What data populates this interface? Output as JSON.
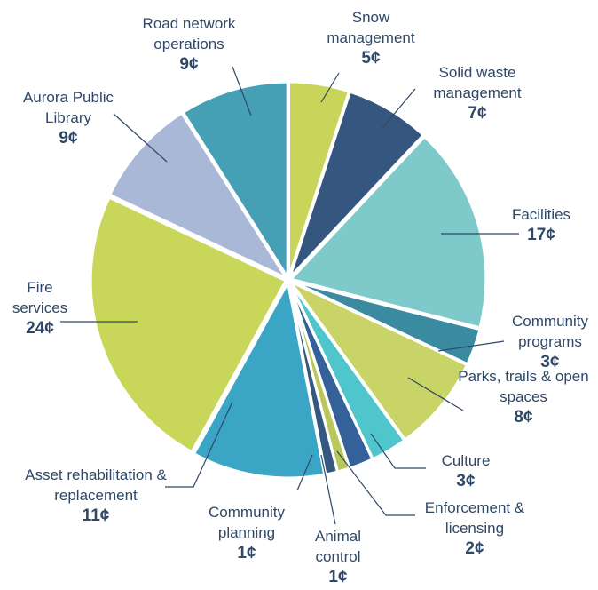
{
  "chart_data": {
    "type": "pie",
    "categories": [
      "Snow management",
      "Solid waste management",
      "Facilities",
      "Community programs",
      "Parks, trails & open spaces",
      "Culture",
      "Enforcement & licensing",
      "Animal control",
      "Community planning",
      "Asset rehabilitation & replacement",
      "Fire services",
      "Aurora Public Library",
      "Road network operations"
    ],
    "values": [
      5,
      7,
      17,
      3,
      8,
      3,
      2,
      1,
      1,
      11,
      24,
      9,
      9
    ],
    "value_labels": [
      "5¢",
      "7¢",
      "17¢",
      "3¢",
      "8¢",
      "3¢",
      "2¢",
      "1¢",
      "1¢",
      "11¢",
      "24¢",
      "9¢",
      "9¢"
    ],
    "colors": [
      "#c9d55a",
      "#35577f",
      "#7ecacb",
      "#3a8aa0",
      "#c8d465",
      "#4ec6cb",
      "#35619b",
      "#b8c85a",
      "#34587f",
      "#3aa5c5",
      "#c8d65a",
      "#aab8d8",
      "#45a0b5"
    ]
  }
}
